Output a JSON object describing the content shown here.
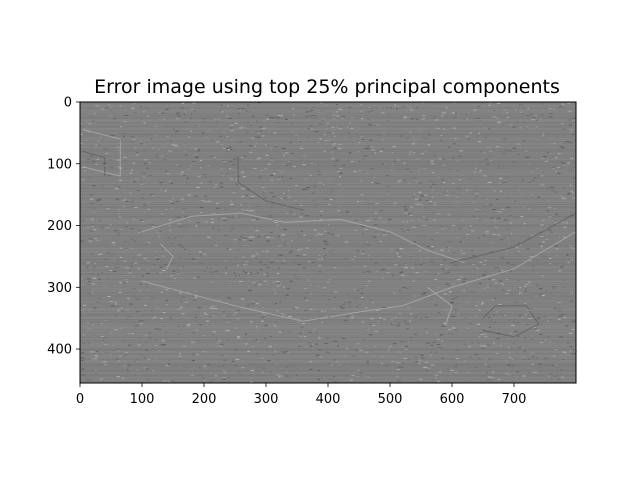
{
  "chart_data": {
    "type": "heatmap",
    "title": "Error image using top 25% principal components",
    "xlabel": "",
    "ylabel": "",
    "image_width": 800,
    "image_height": 455,
    "xlim": [
      0,
      800
    ],
    "ylim": [
      455,
      0
    ],
    "x_ticks": [
      0,
      100,
      200,
      300,
      400,
      500,
      600,
      700
    ],
    "y_ticks": [
      0,
      100,
      200,
      300,
      400
    ],
    "colormap": "gray",
    "background_gray": "#808080",
    "grid": false,
    "legend": "none"
  }
}
